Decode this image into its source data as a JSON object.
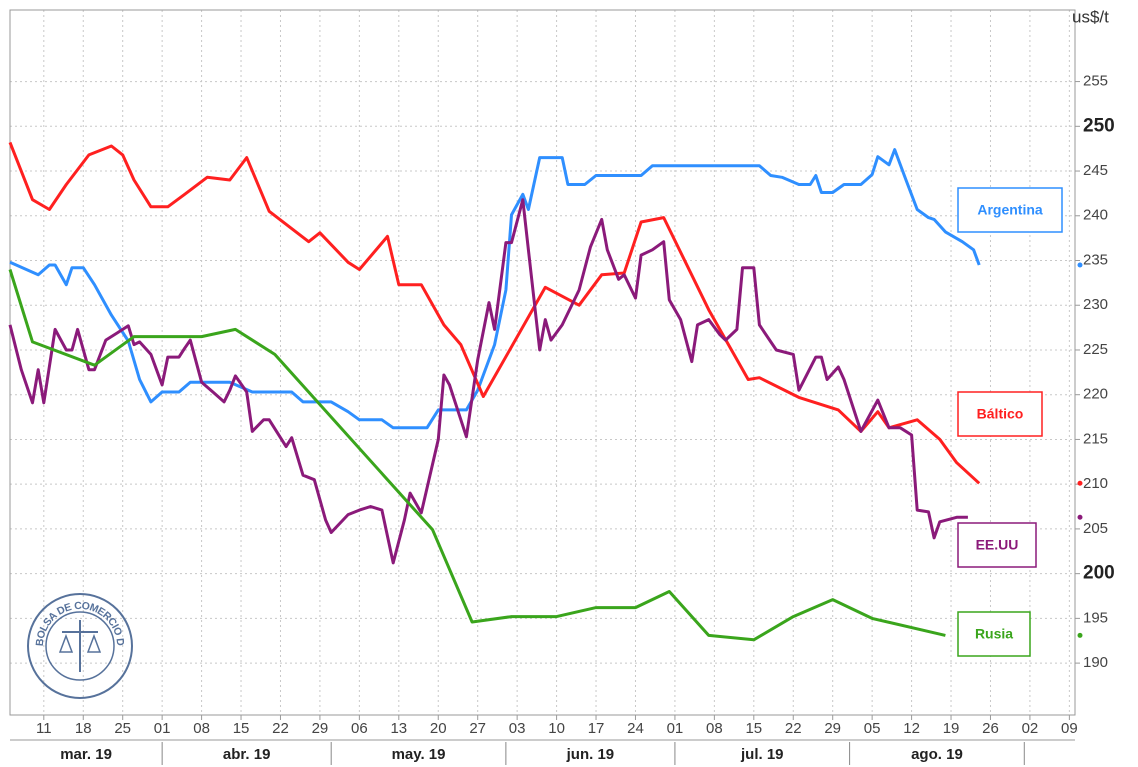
{
  "chart_data": {
    "type": "line",
    "y_axis_label": "us$/t",
    "watermark": "BOLSA DE COMERCIO DE ROSARIO",
    "xlim": [
      "2019-03-05",
      "2019-09-10"
    ],
    "ylim": [
      184.2,
      263
    ],
    "yticks": [
      190,
      195,
      200,
      205,
      210,
      215,
      220,
      225,
      230,
      235,
      240,
      245,
      250,
      255
    ],
    "xticks": [
      {
        "value": "2019-03-11",
        "label": "11"
      },
      {
        "value": "2019-03-18",
        "label": "18"
      },
      {
        "value": "2019-03-25",
        "label": "25"
      },
      {
        "value": "2019-04-01",
        "label": "01"
      },
      {
        "value": "2019-04-08",
        "label": "08"
      },
      {
        "value": "2019-04-15",
        "label": "15"
      },
      {
        "value": "2019-04-22",
        "label": "22"
      },
      {
        "value": "2019-04-29",
        "label": "29"
      },
      {
        "value": "2019-05-06",
        "label": "06"
      },
      {
        "value": "2019-05-13",
        "label": "13"
      },
      {
        "value": "2019-05-20",
        "label": "20"
      },
      {
        "value": "2019-05-27",
        "label": "27"
      },
      {
        "value": "2019-06-03",
        "label": "03"
      },
      {
        "value": "2019-06-10",
        "label": "10"
      },
      {
        "value": "2019-06-17",
        "label": "17"
      },
      {
        "value": "2019-06-24",
        "label": "24"
      },
      {
        "value": "2019-07-01",
        "label": "01"
      },
      {
        "value": "2019-07-08",
        "label": "08"
      },
      {
        "value": "2019-07-15",
        "label": "15"
      },
      {
        "value": "2019-07-22",
        "label": "22"
      },
      {
        "value": "2019-07-29",
        "label": "29"
      },
      {
        "value": "2019-08-05",
        "label": "05"
      },
      {
        "value": "2019-08-12",
        "label": "12"
      },
      {
        "value": "2019-08-19",
        "label": "19"
      },
      {
        "value": "2019-08-26",
        "label": "26"
      },
      {
        "value": "2019-09-02",
        "label": "02"
      },
      {
        "value": "2019-09-09",
        "label": "09"
      }
    ],
    "months": [
      "mar. 19",
      "abr. 19",
      "may. 19",
      "jun. 19",
      "jul. 19",
      "ago. 19"
    ],
    "grid": true,
    "series": [
      {
        "name": "Argentina",
        "color": "#2f8fff",
        "x": [
          "2019-03-05",
          "2019-03-10",
          "2019-03-12",
          "2019-03-13",
          "2019-03-15",
          "2019-03-16",
          "2019-03-18",
          "2019-03-20",
          "2019-03-23",
          "2019-03-26",
          "2019-03-28",
          "2019-03-30",
          "2019-04-01",
          "2019-04-04",
          "2019-04-06",
          "2019-04-13",
          "2019-04-17",
          "2019-04-24",
          "2019-04-26",
          "2019-05-01",
          "2019-05-04",
          "2019-05-06",
          "2019-05-10",
          "2019-05-12",
          "2019-05-18",
          "2019-05-20",
          "2019-05-25",
          "2019-05-27",
          "2019-05-30",
          "2019-06-01",
          "2019-06-02",
          "2019-06-04",
          "2019-06-05",
          "2019-06-07",
          "2019-06-11",
          "2019-06-12",
          "2019-06-15",
          "2019-06-17",
          "2019-06-25",
          "2019-06-27",
          "2019-07-16",
          "2019-07-18",
          "2019-07-20",
          "2019-07-23",
          "2019-07-25",
          "2019-07-26",
          "2019-07-27",
          "2019-07-29",
          "2019-07-31",
          "2019-08-03",
          "2019-08-05",
          "2019-08-06",
          "2019-08-08",
          "2019-08-09",
          "2019-08-11",
          "2019-08-13",
          "2019-08-15",
          "2019-08-16",
          "2019-08-18",
          "2019-08-21",
          "2019-08-23",
          "2019-08-24"
        ],
        "values": [
          234.8,
          233.4,
          234.5,
          234.5,
          232.3,
          234.2,
          234.2,
          232.3,
          228.9,
          226,
          221.7,
          219.2,
          220.3,
          220.3,
          221.4,
          221.4,
          220.3,
          220.3,
          219.2,
          219.2,
          218.1,
          217.2,
          217.2,
          216.3,
          216.3,
          218.3,
          218.3,
          220.5,
          225.6,
          231.7,
          240.1,
          242.4,
          240.7,
          246.5,
          246.5,
          243.5,
          243.5,
          244.5,
          244.5,
          245.6,
          245.6,
          244.5,
          244.3,
          243.5,
          243.5,
          244.5,
          242.6,
          242.6,
          243.5,
          243.5,
          244.6,
          246.6,
          245.7,
          247.4,
          244,
          240.7,
          239.8,
          239.6,
          238.2,
          237.1,
          236.2,
          234.5
        ]
      },
      {
        "name": "Báltico",
        "color": "#ff2020",
        "x": [
          "2019-03-05",
          "2019-03-09",
          "2019-03-12",
          "2019-03-15",
          "2019-03-19",
          "2019-03-23",
          "2019-03-25",
          "2019-03-27",
          "2019-03-30",
          "2019-04-02",
          "2019-04-05",
          "2019-04-09",
          "2019-04-13",
          "2019-04-16",
          "2019-04-20",
          "2019-04-27",
          "2019-04-29",
          "2019-05-04",
          "2019-05-06",
          "2019-05-11",
          "2019-05-13",
          "2019-05-17",
          "2019-05-21",
          "2019-05-24",
          "2019-05-28",
          "2019-06-08",
          "2019-06-14",
          "2019-06-18",
          "2019-06-22",
          "2019-06-25",
          "2019-06-29",
          "2019-07-07",
          "2019-07-14",
          "2019-07-16",
          "2019-07-23",
          "2019-07-30",
          "2019-08-03",
          "2019-08-06",
          "2019-08-08",
          "2019-08-13",
          "2019-08-17",
          "2019-08-20",
          "2019-08-24"
        ],
        "values": [
          248.2,
          241.8,
          240.7,
          243.5,
          246.8,
          247.8,
          246.8,
          244,
          241,
          241,
          242.4,
          244.3,
          244,
          246.5,
          240.5,
          237.1,
          238.1,
          234.8,
          234,
          237.7,
          232.3,
          232.3,
          227.8,
          225.6,
          219.8,
          232,
          230,
          233.4,
          233.6,
          239.3,
          239.8,
          229.5,
          221.7,
          221.9,
          219.7,
          218.3,
          215.9,
          218.1,
          216.3,
          217.2,
          215,
          212.4,
          210.1
        ]
      },
      {
        "name": "EE.UU",
        "color": "#8b1a7a",
        "x": [
          "2019-03-05",
          "2019-03-07",
          "2019-03-09",
          "2019-03-10",
          "2019-03-11",
          "2019-03-13",
          "2019-03-15",
          "2019-03-16",
          "2019-03-17",
          "2019-03-19",
          "2019-03-20",
          "2019-03-22",
          "2019-03-24",
          "2019-03-26",
          "2019-03-27",
          "2019-03-28",
          "2019-03-30",
          "2019-04-01",
          "2019-04-02",
          "2019-04-04",
          "2019-04-05",
          "2019-04-06",
          "2019-04-08",
          "2019-04-10",
          "2019-04-12",
          "2019-04-13",
          "2019-04-14",
          "2019-04-16",
          "2019-04-17",
          "2019-04-19",
          "2019-04-20",
          "2019-04-23",
          "2019-04-24",
          "2019-04-26",
          "2019-04-28",
          "2019-04-30",
          "2019-05-01",
          "2019-05-04",
          "2019-05-06",
          "2019-05-08",
          "2019-05-10",
          "2019-05-12",
          "2019-05-14",
          "2019-05-15",
          "2019-05-17",
          "2019-05-20",
          "2019-05-21",
          "2019-05-22",
          "2019-05-25",
          "2019-05-27",
          "2019-05-29",
          "2019-05-30",
          "2019-06-01",
          "2019-06-02",
          "2019-06-04",
          "2019-06-05",
          "2019-06-07",
          "2019-06-08",
          "2019-06-09",
          "2019-06-11",
          "2019-06-14",
          "2019-06-16",
          "2019-06-18",
          "2019-06-19",
          "2019-06-21",
          "2019-06-22",
          "2019-06-24",
          "2019-06-25",
          "2019-06-27",
          "2019-06-29",
          "2019-06-30",
          "2019-07-02",
          "2019-07-04",
          "2019-07-05",
          "2019-07-07",
          "2019-07-09",
          "2019-07-10",
          "2019-07-12",
          "2019-07-13",
          "2019-07-15",
          "2019-07-16",
          "2019-07-19",
          "2019-07-22",
          "2019-07-23",
          "2019-07-26",
          "2019-07-27",
          "2019-07-28",
          "2019-07-30",
          "2019-07-31",
          "2019-08-03",
          "2019-08-06",
          "2019-08-08",
          "2019-08-10",
          "2019-08-12",
          "2019-08-13",
          "2019-08-15",
          "2019-08-16",
          "2019-08-17",
          "2019-08-20",
          "2019-08-22"
        ],
        "values": [
          227.8,
          222.8,
          219.1,
          222.8,
          219.1,
          227.3,
          225,
          225,
          227.3,
          222.8,
          222.8,
          226.1,
          226.9,
          227.7,
          225.6,
          225.9,
          224.5,
          221.1,
          224.2,
          224.2,
          225.2,
          226.1,
          221.4,
          220.3,
          219.2,
          220.5,
          222.1,
          220.3,
          215.9,
          217.2,
          217.2,
          214.2,
          215.2,
          211,
          210.5,
          206,
          204.6,
          206.6,
          207.1,
          207.5,
          207.1,
          201.2,
          206,
          209,
          206.8,
          215,
          222.2,
          221.1,
          215.3,
          223.9,
          230.3,
          227.3,
          237,
          237,
          241.8,
          236.2,
          225,
          228.4,
          226.1,
          227.8,
          231.7,
          236.5,
          239.6,
          236.2,
          232.9,
          233.4,
          230.8,
          235.6,
          236.2,
          237.1,
          230.6,
          228.4,
          223.7,
          227.8,
          228.4,
          226.7,
          226.1,
          227.3,
          234.2,
          234.2,
          227.8,
          225,
          224.5,
          220.5,
          224.2,
          224.2,
          221.7,
          223.1,
          221.7,
          215.9,
          219.4,
          216.3,
          216.3,
          215.5,
          207.1,
          206.9,
          204,
          205.8,
          206.3,
          206.3
        ]
      },
      {
        "name": "Rusia",
        "color": "#3aa51c",
        "x": [
          "2019-03-05",
          "2019-03-09",
          "2019-03-20",
          "2019-03-27",
          "2019-04-08",
          "2019-04-14",
          "2019-04-21",
          "2019-05-19",
          "2019-05-26",
          "2019-06-02",
          "2019-06-10",
          "2019-06-17",
          "2019-06-24",
          "2019-06-30",
          "2019-07-07",
          "2019-07-15",
          "2019-07-22",
          "2019-07-29",
          "2019-08-05",
          "2019-08-18"
        ],
        "values": [
          234,
          225.9,
          223.3,
          226.5,
          226.5,
          227.3,
          224.5,
          204.9,
          194.6,
          195.2,
          195.2,
          196.2,
          196.2,
          198,
          193.1,
          192.6,
          195.2,
          197.1,
          195,
          193.1
        ]
      }
    ]
  }
}
